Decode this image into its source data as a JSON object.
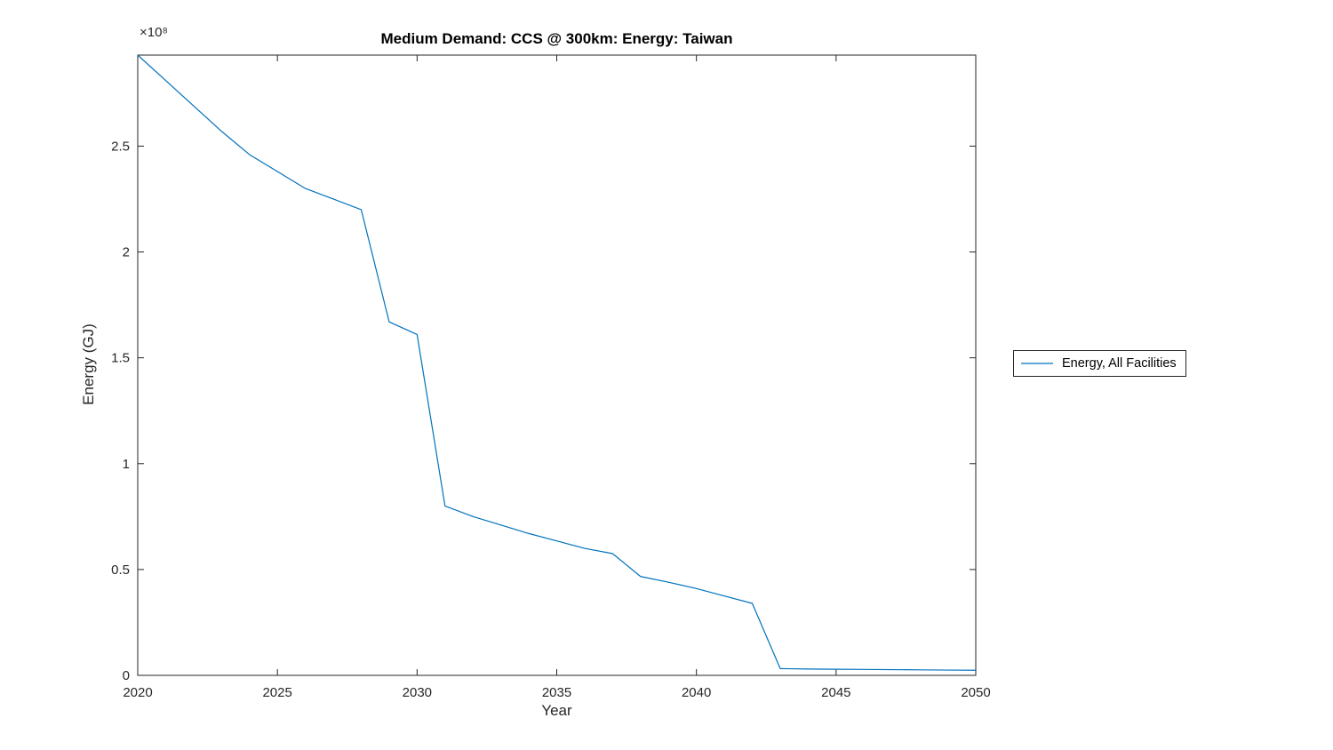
{
  "chart_data": {
    "type": "line",
    "title": "Medium Demand: CCS @ 300km: Energy: Taiwan",
    "xlabel": "Year",
    "ylabel": "Energy (GJ)",
    "axis_offset_text": "×10⁸",
    "axis_color": "#262626",
    "text_color": "#262626",
    "background_color": "#ffffff",
    "grid": false,
    "legend_position": "right-outside",
    "xlim": [
      2020,
      2050
    ],
    "ylim": [
      0,
      293000000.0
    ],
    "xticks": [
      2020,
      2025,
      2030,
      2035,
      2040,
      2045,
      2050
    ],
    "xtick_labels": [
      "2020",
      "2025",
      "2030",
      "2035",
      "2040",
      "2045",
      "2050"
    ],
    "ytick_values": [
      0,
      50000000.0,
      100000000.0,
      150000000.0,
      200000000.0,
      250000000.0
    ],
    "ytick_labels": [
      "0",
      "0.5",
      "1",
      "1.5",
      "2",
      "2.5"
    ],
    "x": [
      2020,
      2021,
      2022,
      2023,
      2024,
      2025,
      2026,
      2027,
      2028,
      2029,
      2030,
      2031,
      2032,
      2033,
      2034,
      2035,
      2036,
      2037,
      2038,
      2039,
      2040,
      2041,
      2042,
      2043,
      2044,
      2045,
      2046,
      2047,
      2048,
      2049,
      2050
    ],
    "series": [
      {
        "name": "Energy, All Facilities",
        "color": "#0072BD",
        "values": [
          293000000.0,
          281000000.0,
          269000000.0,
          257000000.0,
          246000000.0,
          238000000.0,
          230000000.0,
          225000000.0,
          220000000.0,
          167000000.0,
          161000000.0,
          80000000.0,
          75000000.0,
          71000000.0,
          67000000.0,
          63500000.0,
          60000000.0,
          57500000.0,
          46700000.0,
          44000000.0,
          41000000.0,
          37500000.0,
          34000000.0,
          3200000.0,
          3000000.0,
          2900000.0,
          2800000.0,
          2700000.0,
          2600000.0,
          2500000.0,
          2400000.0
        ]
      }
    ]
  }
}
